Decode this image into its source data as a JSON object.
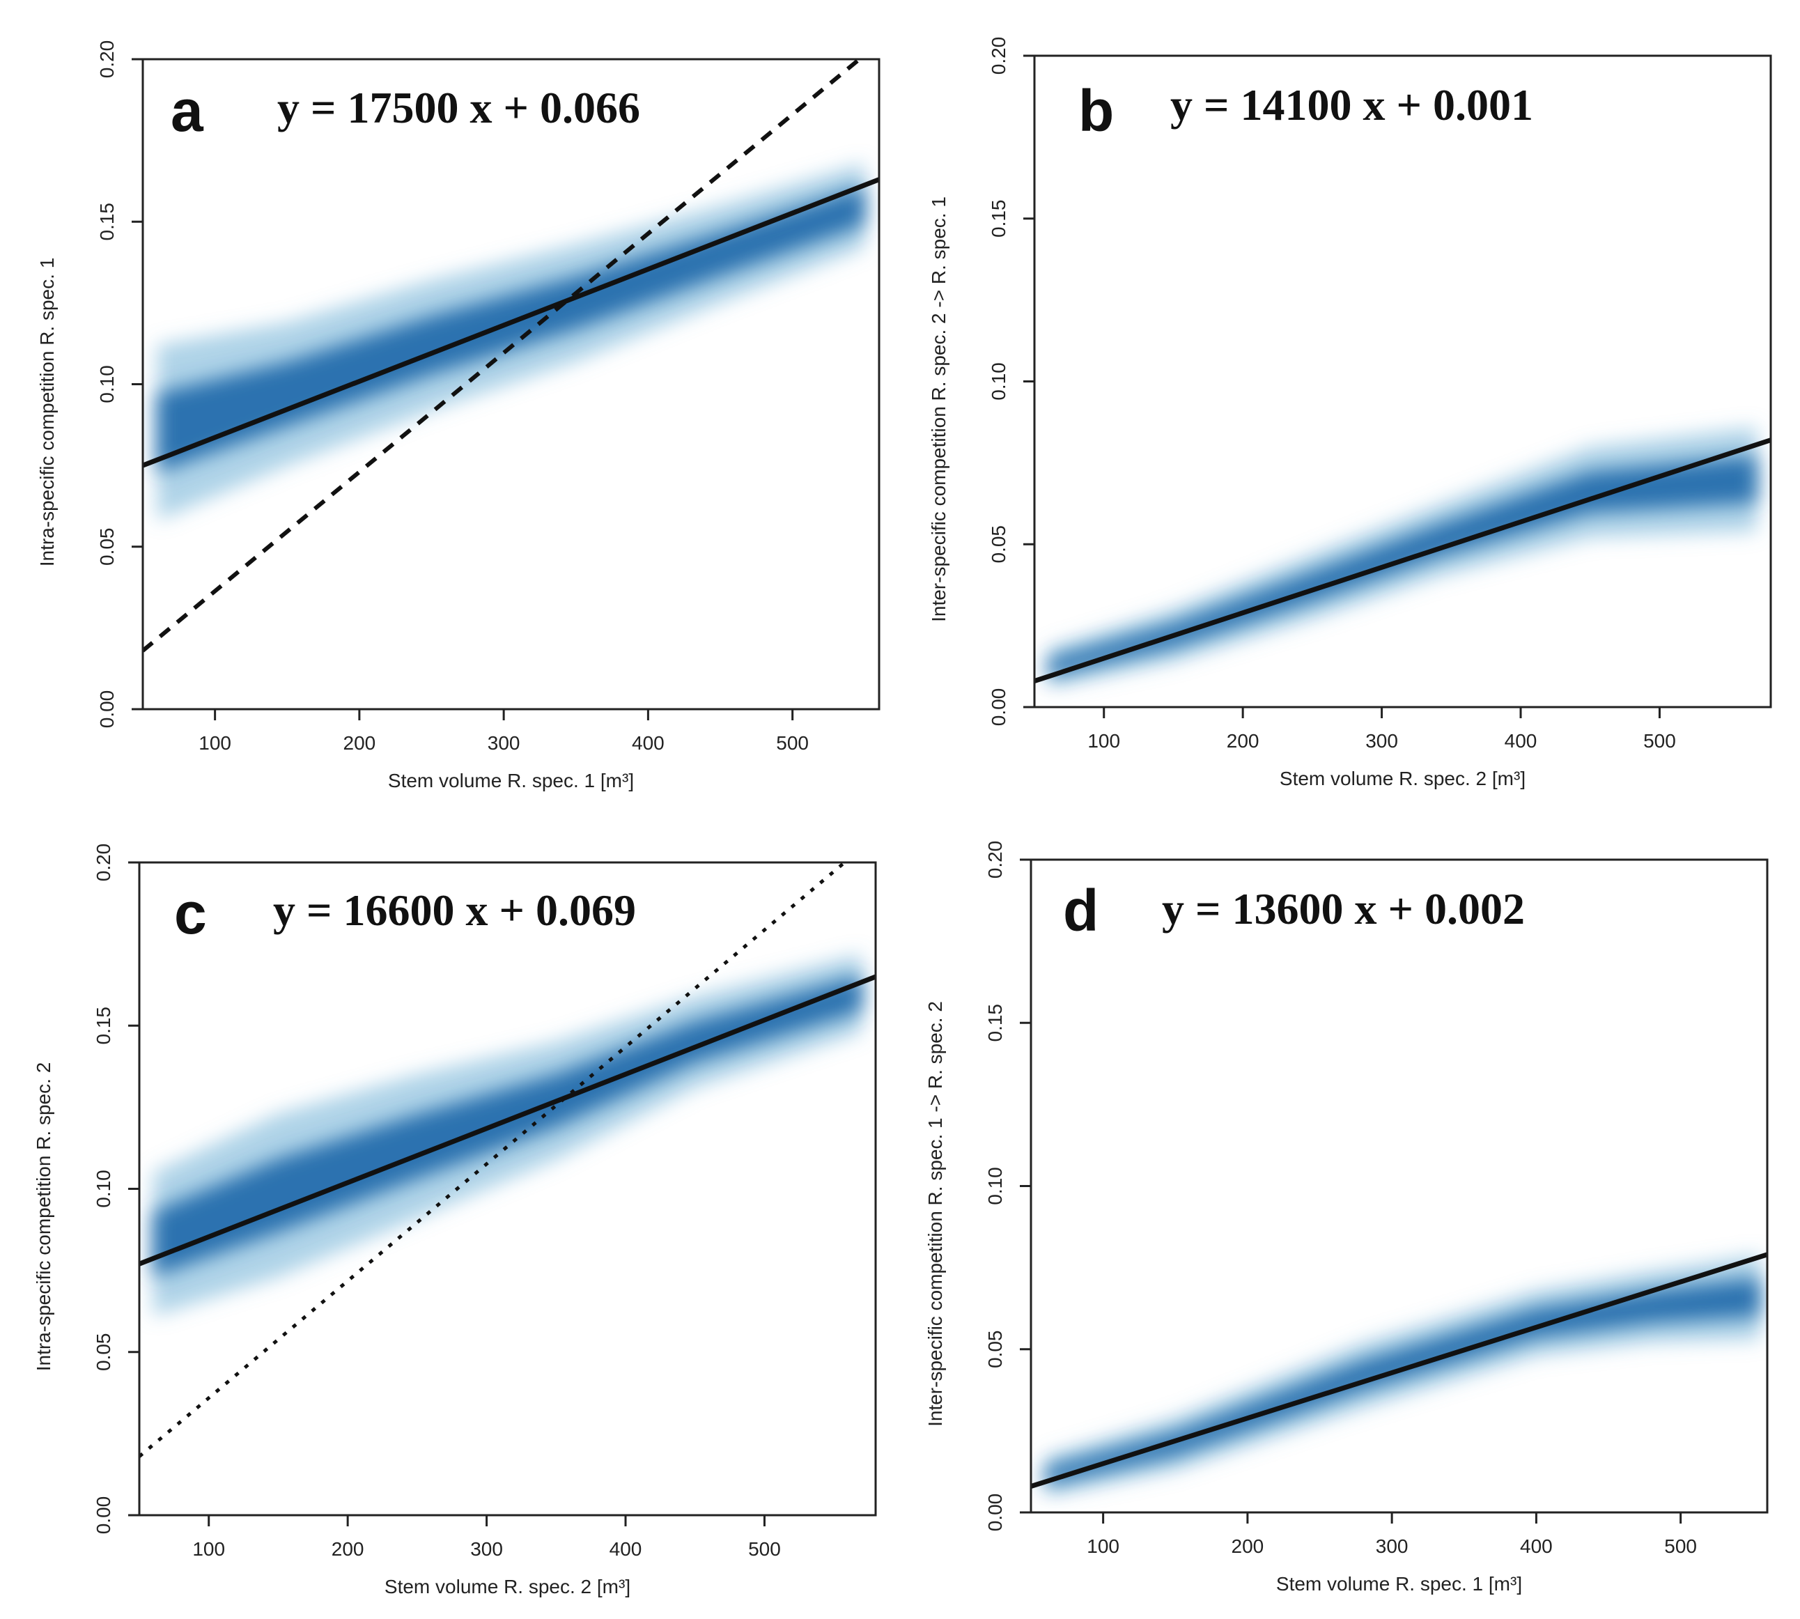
{
  "chart_data": [
    {
      "type": "scatter",
      "panel": "a",
      "equation": "y = 17500 x + 0.066",
      "xlabel": "Stem volume R. spec. 1 [m³]",
      "ylabel": "Intra-specific competition R. spec. 1",
      "xlim": [
        50,
        560
      ],
      "ylim": [
        0,
        0.2
      ],
      "xticks": [
        "100",
        "200",
        "300",
        "400",
        "500"
      ],
      "yticks": [
        "0.00",
        "0.05",
        "0.10",
        "0.15",
        "0.20"
      ],
      "fit_line": {
        "x": [
          50,
          560
        ],
        "y": [
          0.075,
          0.163
        ]
      },
      "reference_line": {
        "style": "dashed",
        "x": [
          50,
          560
        ],
        "y": [
          0.018,
          0.205
        ]
      },
      "density_band": {
        "x": [
          60,
          150,
          250,
          350,
          450,
          550
        ],
        "y": [
          0.085,
          0.097,
          0.112,
          0.125,
          0.14,
          0.155
        ],
        "half_width": [
          0.027,
          0.022,
          0.02,
          0.018,
          0.015,
          0.013
        ]
      }
    },
    {
      "type": "scatter",
      "panel": "b",
      "equation": "y = 14100 x + 0.001",
      "xlabel": "Stem volume R. spec. 2 [m³]",
      "ylabel": "Inter-specific competition R. spec. 2 -> R. spec. 1",
      "xlim": [
        50,
        580
      ],
      "ylim": [
        0,
        0.2
      ],
      "xticks": [
        "100",
        "200",
        "300",
        "400",
        "500"
      ],
      "yticks": [
        "0.00",
        "0.05",
        "0.10",
        "0.15",
        "0.20"
      ],
      "fit_line": {
        "x": [
          50,
          580
        ],
        "y": [
          0.008,
          0.082
        ]
      },
      "density_band": {
        "x": [
          60,
          150,
          250,
          340,
          450,
          570
        ],
        "y": [
          0.012,
          0.022,
          0.037,
          0.051,
          0.066,
          0.07
        ],
        "half_width": [
          0.006,
          0.008,
          0.01,
          0.011,
          0.014,
          0.016
        ]
      }
    },
    {
      "type": "scatter",
      "panel": "c",
      "equation": "y = 16600 x + 0.069",
      "xlabel": "Stem volume R. spec. 2 [m³]",
      "ylabel": "Intra-specific competition R. spec. 2",
      "xlim": [
        50,
        580
      ],
      "ylim": [
        0,
        0.2
      ],
      "xticks": [
        "100",
        "200",
        "300",
        "400",
        "500"
      ],
      "yticks": [
        "0.00",
        "0.05",
        "0.10",
        "0.15",
        "0.20"
      ],
      "fit_line": {
        "x": [
          50,
          580
        ],
        "y": [
          0.077,
          0.165
        ]
      },
      "reference_line": {
        "style": "dotted",
        "x": [
          50,
          580
        ],
        "y": [
          0.018,
          0.208
        ]
      },
      "density_band": {
        "x": [
          60,
          150,
          250,
          350,
          450,
          570
        ],
        "y": [
          0.083,
          0.098,
          0.113,
          0.127,
          0.145,
          0.16
        ],
        "half_width": [
          0.022,
          0.025,
          0.022,
          0.018,
          0.014,
          0.012
        ]
      }
    },
    {
      "type": "scatter",
      "panel": "d",
      "equation": "y = 13600 x + 0.002",
      "xlabel": "Stem volume R. spec. 1 [m³]",
      "ylabel": "Inter-specific competition R. spec. 1 -> R. spec. 2",
      "xlim": [
        50,
        560
      ],
      "ylim": [
        0,
        0.2
      ],
      "xticks": [
        "100",
        "200",
        "300",
        "400",
        "500"
      ],
      "yticks": [
        "0.00",
        "0.05",
        "0.10",
        "0.15",
        "0.20"
      ],
      "fit_line": {
        "x": [
          50,
          560
        ],
        "y": [
          0.008,
          0.079
        ]
      },
      "density_band": {
        "x": [
          60,
          150,
          280,
          400,
          480,
          555
        ],
        "y": [
          0.011,
          0.021,
          0.042,
          0.058,
          0.063,
          0.066
        ],
        "half_width": [
          0.006,
          0.008,
          0.01,
          0.01,
          0.011,
          0.013
        ]
      }
    }
  ]
}
